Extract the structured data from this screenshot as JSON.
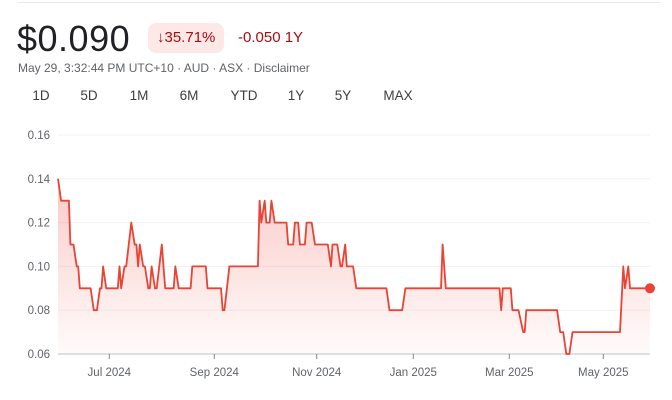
{
  "quote": {
    "price": "$0.090",
    "change_arrow_icon": "arrow-down-icon",
    "change_percent": "35.71%",
    "change_value": "-0.050 1Y",
    "subtitle": "May 29, 3:32:44 PM UTC+10 · AUD · ASX · Disclaimer"
  },
  "tabs": [
    {
      "label": "1D",
      "active": false
    },
    {
      "label": "5D",
      "active": false
    },
    {
      "label": "1M",
      "active": false
    },
    {
      "label": "6M",
      "active": false
    },
    {
      "label": "YTD",
      "active": false
    },
    {
      "label": "1Y",
      "active": true
    },
    {
      "label": "5Y",
      "active": false
    },
    {
      "label": "MAX",
      "active": false
    }
  ],
  "colors": {
    "line": "#ea4335",
    "negative": "#a50e0e",
    "badge_bg": "#fce8e6",
    "active_tab": "#1a73e8"
  },
  "chart_data": {
    "type": "area",
    "ylim": [
      0.06,
      0.16
    ],
    "yticks": [
      "0.16",
      "0.14",
      "0.12",
      "0.10",
      "0.08",
      "0.06"
    ],
    "xlim": [
      "2024-05-29",
      "2025-05-29"
    ],
    "xticks": [
      {
        "date": "2024-07-01",
        "label": "Jul 2024"
      },
      {
        "date": "2024-09-01",
        "label": "Sep 2024"
      },
      {
        "date": "2024-11-01",
        "label": "Nov 2024"
      },
      {
        "date": "2025-01-01",
        "label": "Jan 2025"
      },
      {
        "date": "2025-03-01",
        "label": "Mar 2025"
      },
      {
        "date": "2025-05-01",
        "label": "May 2025"
      }
    ],
    "grid": true,
    "series": [
      {
        "points": [
          [
            "2024-05-29",
            0.14
          ],
          [
            "2024-05-31",
            0.13
          ],
          [
            "2024-06-05",
            0.13
          ],
          [
            "2024-06-06",
            0.11
          ],
          [
            "2024-06-08",
            0.11
          ],
          [
            "2024-06-10",
            0.1
          ],
          [
            "2024-06-11",
            0.1
          ],
          [
            "2024-06-12",
            0.09
          ],
          [
            "2024-06-19",
            0.09
          ],
          [
            "2024-06-21",
            0.08
          ],
          [
            "2024-06-23",
            0.08
          ],
          [
            "2024-06-25",
            0.09
          ],
          [
            "2024-06-26",
            0.09
          ],
          [
            "2024-06-27",
            0.1
          ],
          [
            "2024-06-29",
            0.09
          ],
          [
            "2024-07-06",
            0.09
          ],
          [
            "2024-07-07",
            0.1
          ],
          [
            "2024-07-08",
            0.09
          ],
          [
            "2024-07-10",
            0.1
          ],
          [
            "2024-07-11",
            0.1
          ],
          [
            "2024-07-14",
            0.12
          ],
          [
            "2024-07-16",
            0.11
          ],
          [
            "2024-07-17",
            0.11
          ],
          [
            "2024-07-18",
            0.1
          ],
          [
            "2024-07-19",
            0.11
          ],
          [
            "2024-07-21",
            0.1
          ],
          [
            "2024-07-22",
            0.1
          ],
          [
            "2024-07-24",
            0.09
          ],
          [
            "2024-07-25",
            0.09
          ],
          [
            "2024-07-26",
            0.1
          ],
          [
            "2024-07-28",
            0.09
          ],
          [
            "2024-07-29",
            0.09
          ],
          [
            "2024-08-01",
            0.11
          ],
          [
            "2024-08-03",
            0.09
          ],
          [
            "2024-08-08",
            0.09
          ],
          [
            "2024-08-09",
            0.1
          ],
          [
            "2024-08-11",
            0.09
          ],
          [
            "2024-08-18",
            0.09
          ],
          [
            "2024-08-19",
            0.1
          ],
          [
            "2024-08-27",
            0.1
          ],
          [
            "2024-08-28",
            0.09
          ],
          [
            "2024-09-05",
            0.09
          ],
          [
            "2024-09-06",
            0.08
          ],
          [
            "2024-09-07",
            0.08
          ],
          [
            "2024-09-10",
            0.1
          ],
          [
            "2024-09-27",
            0.1
          ],
          [
            "2024-09-28",
            0.13
          ],
          [
            "2024-09-29",
            0.12
          ],
          [
            "2024-10-01",
            0.13
          ],
          [
            "2024-10-02",
            0.12
          ],
          [
            "2024-10-04",
            0.12
          ],
          [
            "2024-10-05",
            0.13
          ],
          [
            "2024-10-07",
            0.12
          ],
          [
            "2024-10-14",
            0.12
          ],
          [
            "2024-10-15",
            0.11
          ],
          [
            "2024-10-18",
            0.11
          ],
          [
            "2024-10-19",
            0.12
          ],
          [
            "2024-10-21",
            0.12
          ],
          [
            "2024-10-22",
            0.11
          ],
          [
            "2024-10-25",
            0.11
          ],
          [
            "2024-10-26",
            0.12
          ],
          [
            "2024-10-29",
            0.12
          ],
          [
            "2024-10-31",
            0.11
          ],
          [
            "2024-11-08",
            0.11
          ],
          [
            "2024-11-10",
            0.1
          ],
          [
            "2024-11-11",
            0.11
          ],
          [
            "2024-11-14",
            0.11
          ],
          [
            "2024-11-16",
            0.1
          ],
          [
            "2024-11-17",
            0.1
          ],
          [
            "2024-11-19",
            0.11
          ],
          [
            "2024-11-20",
            0.1
          ],
          [
            "2024-11-24",
            0.1
          ],
          [
            "2024-11-26",
            0.09
          ],
          [
            "2024-12-15",
            0.09
          ],
          [
            "2024-12-17",
            0.08
          ],
          [
            "2024-12-25",
            0.08
          ],
          [
            "2024-12-27",
            0.09
          ],
          [
            "2025-01-18",
            0.09
          ],
          [
            "2025-01-19",
            0.11
          ],
          [
            "2025-01-21",
            0.09
          ],
          [
            "2025-02-23",
            0.09
          ],
          [
            "2025-02-24",
            0.08
          ],
          [
            "2025-02-25",
            0.09
          ],
          [
            "2025-03-02",
            0.09
          ],
          [
            "2025-03-03",
            0.08
          ],
          [
            "2025-03-07",
            0.08
          ],
          [
            "2025-03-10",
            0.07
          ],
          [
            "2025-03-11",
            0.07
          ],
          [
            "2025-03-12",
            0.08
          ],
          [
            "2025-04-01",
            0.08
          ],
          [
            "2025-04-03",
            0.07
          ],
          [
            "2025-04-05",
            0.07
          ],
          [
            "2025-04-07",
            0.06
          ],
          [
            "2025-04-09",
            0.06
          ],
          [
            "2025-04-11",
            0.07
          ],
          [
            "2025-05-11",
            0.07
          ],
          [
            "2025-05-13",
            0.1
          ],
          [
            "2025-05-14",
            0.09
          ],
          [
            "2025-05-16",
            0.1
          ],
          [
            "2025-05-17",
            0.09
          ],
          [
            "2025-05-29",
            0.09
          ]
        ]
      }
    ]
  }
}
